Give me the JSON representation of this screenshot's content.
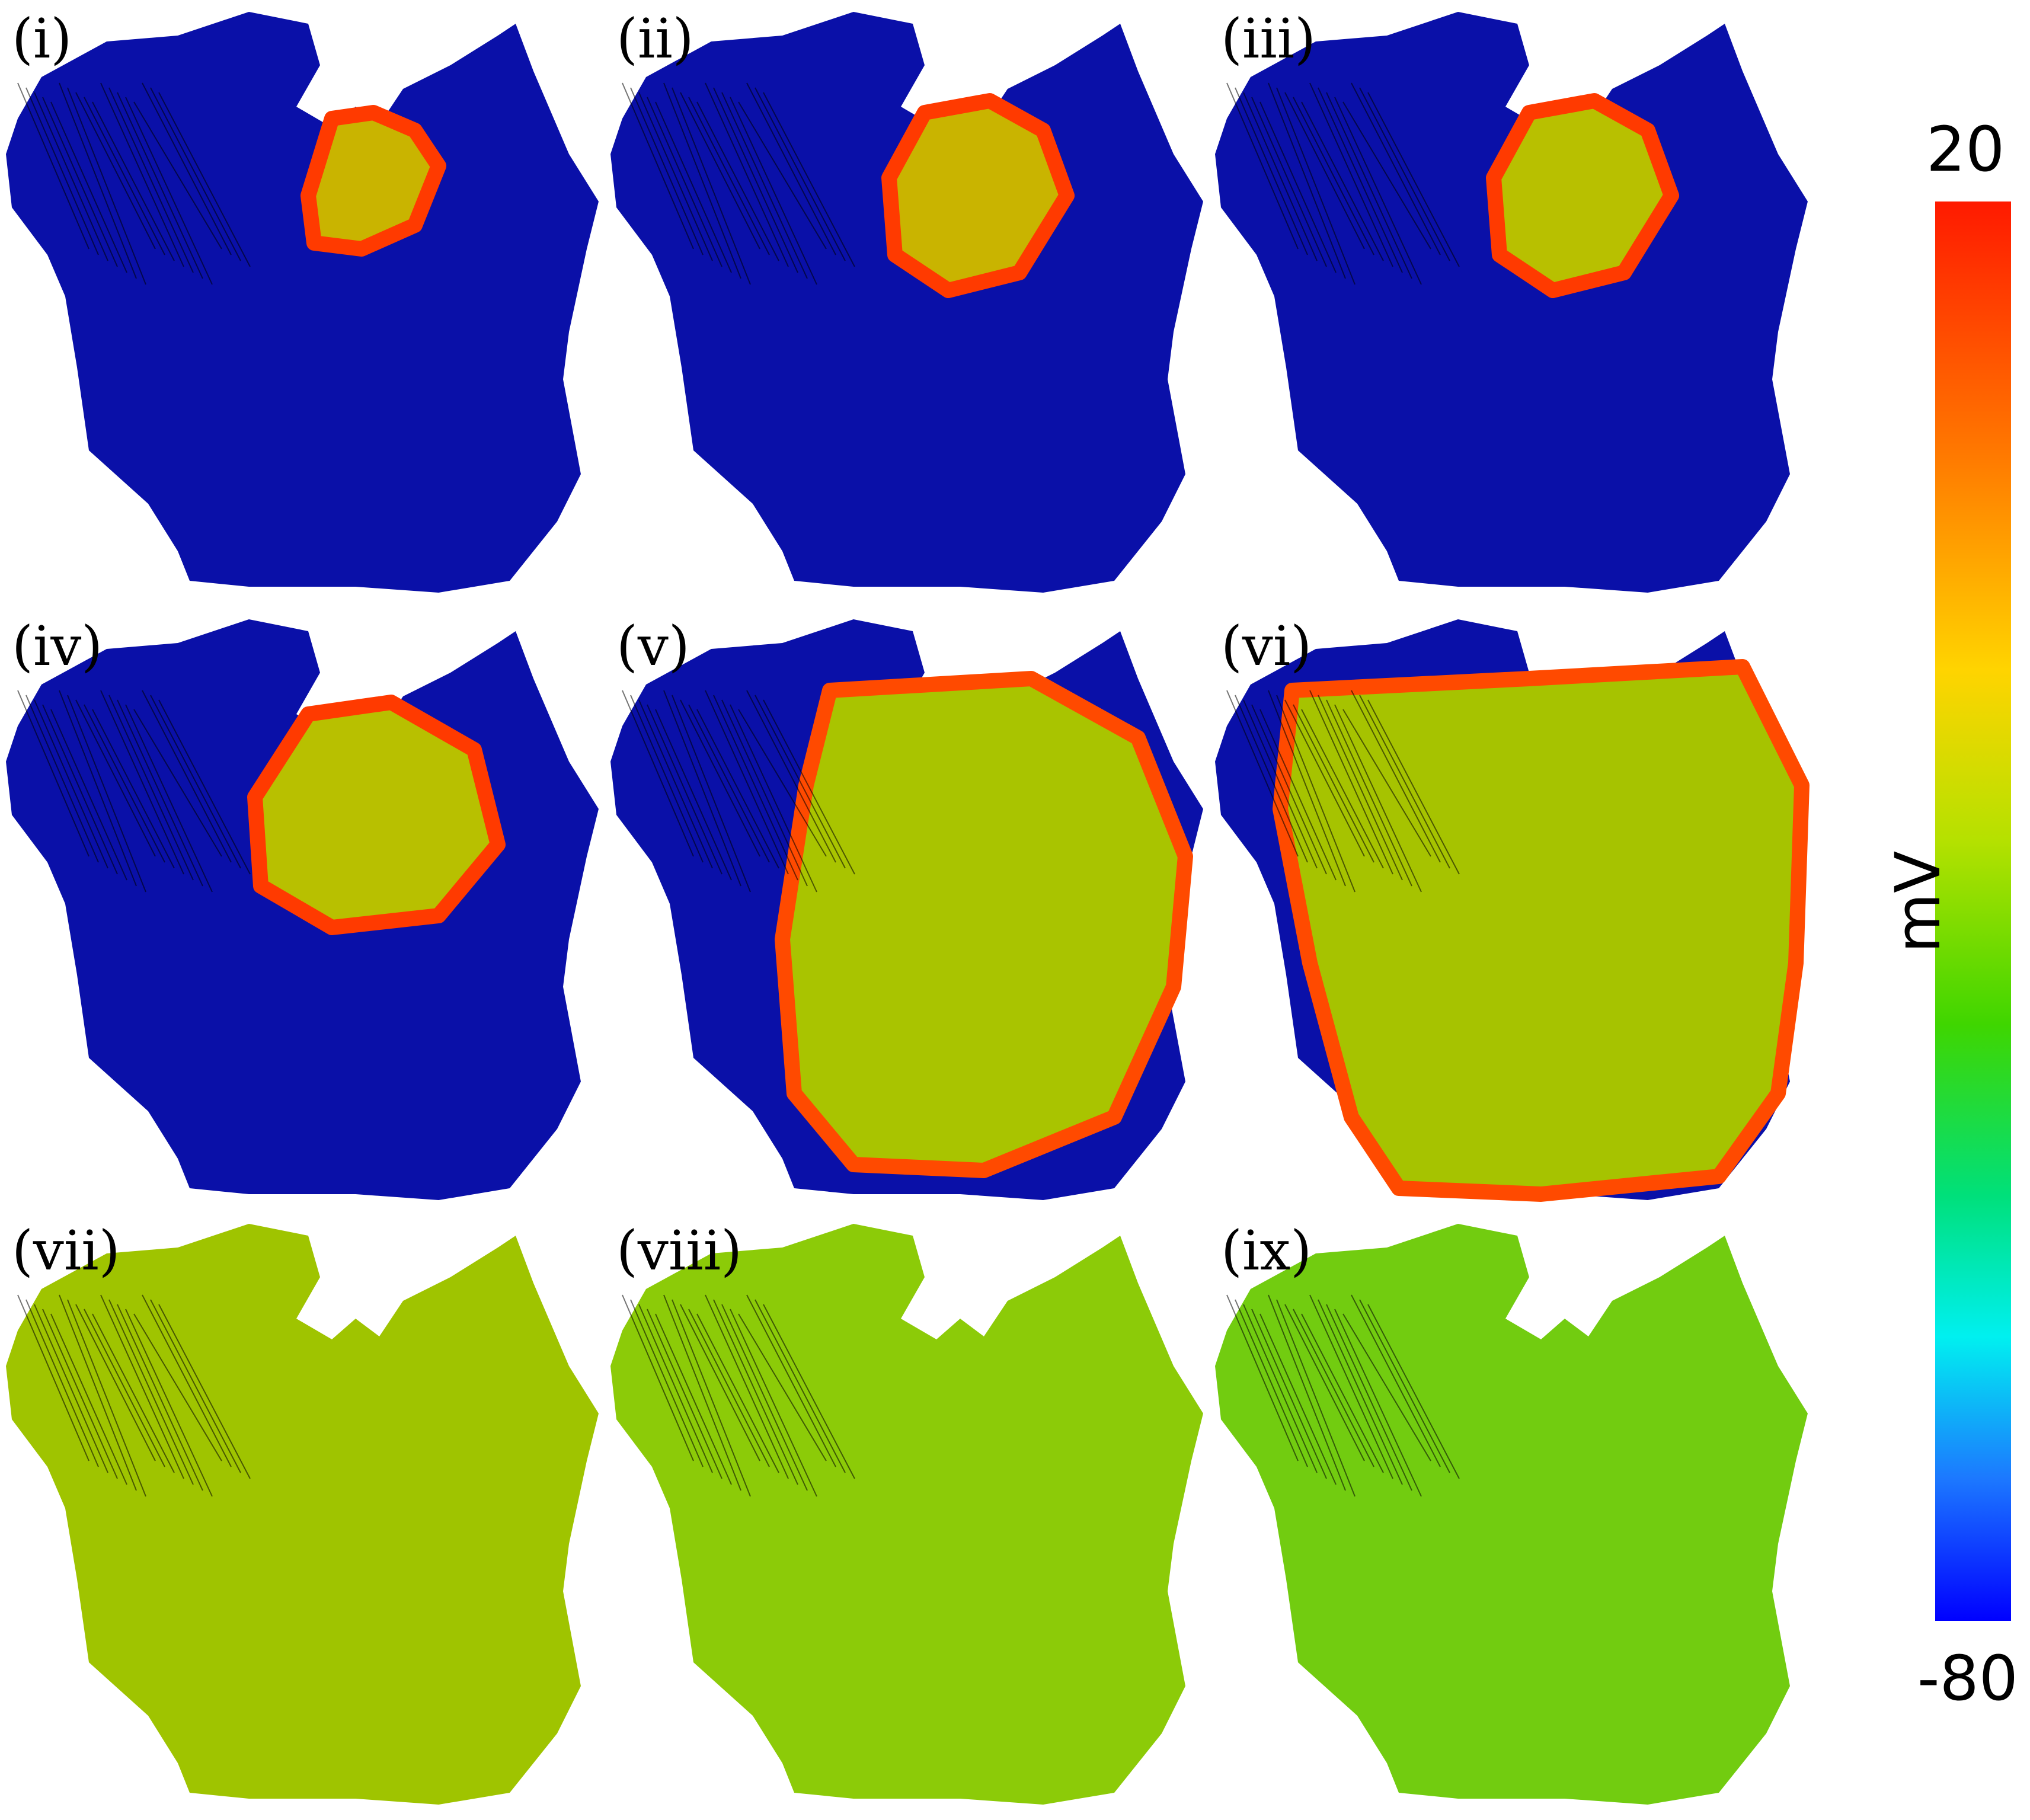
{
  "panels": [
    {
      "label": "(i)",
      "tissue": "#0a10a8",
      "wave": "#c9b400",
      "front": "#ff3a00",
      "stage": 0.12
    },
    {
      "label": "(ii)",
      "tissue": "#0a10a8",
      "wave": "#c9b400",
      "front": "#ff3a00",
      "stage": 0.18
    },
    {
      "label": "(iii)",
      "tissue": "#0a10a8",
      "wave": "#b8c000",
      "front": "#ff3a00",
      "stage": 0.28
    },
    {
      "label": "(iv)",
      "tissue": "#0a10a8",
      "wave": "#b8c000",
      "front": "#ff3a00",
      "stage": 0.42
    },
    {
      "label": "(v)",
      "tissue": "#0a10a8",
      "wave": "#a9c400",
      "front": "#ff4a00",
      "stage": 0.72
    },
    {
      "label": "(vi)",
      "tissue": "#0a10a8",
      "wave": "#a6c300",
      "front": "#ff4a00",
      "stage": 0.95
    },
    {
      "label": "(vii)",
      "tissue": "#9fc400",
      "wave": "#7fcc10",
      "front": "#9fc400",
      "stage": 1.0
    },
    {
      "label": "(viii)",
      "tissue": "#8ccb08",
      "wave": "#5fcc10",
      "front": "#8ccb08",
      "stage": 1.0
    },
    {
      "label": "(ix)",
      "tissue": "#72cc10",
      "wave": "#2fc440",
      "front": "#72cc10",
      "stage": 1.0
    }
  ],
  "colorbar": {
    "max_label": "20",
    "min_label": "-80",
    "unit": "mV",
    "colors": [
      "#ff1a00",
      "#ffd400",
      "#3fd600",
      "#00f0f0",
      "#0000ff"
    ]
  }
}
